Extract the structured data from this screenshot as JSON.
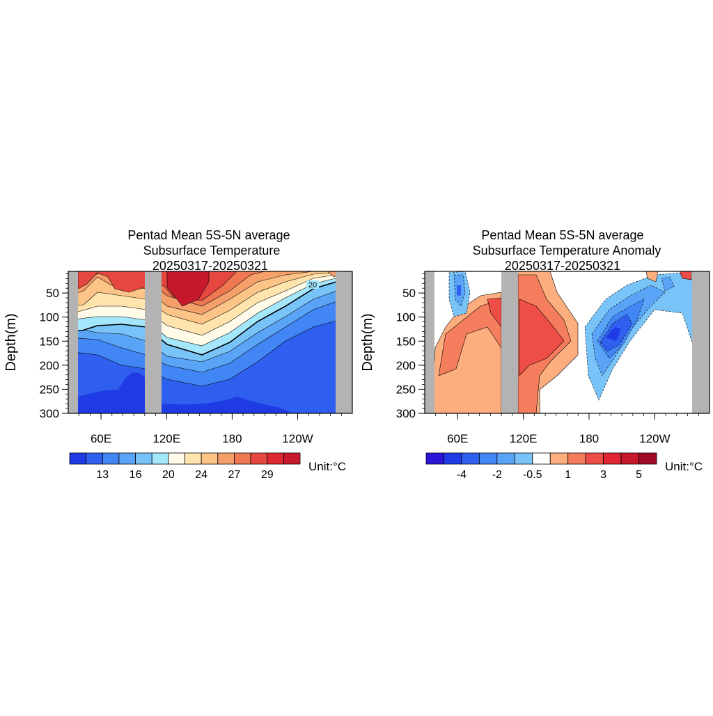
{
  "chart_data": [
    {
      "type": "heatmap",
      "title": [
        "Pentad Mean 5S-5N average",
        "Subsurface Temperature",
        "20250317-20250321"
      ],
      "ylabel": "Depth(m)",
      "xlabel": "",
      "x_ticks": [
        "60E",
        "120E",
        "180",
        "120W"
      ],
      "x_range": [
        30,
        290
      ],
      "y_ticks": [
        "50",
        "100",
        "150",
        "200",
        "250",
        "300"
      ],
      "y_range": [
        5,
        300
      ],
      "y_reversed": true,
      "contour_label": "20",
      "colorbar": {
        "labels": [
          "13",
          "16",
          "20",
          "24",
          "27",
          "29"
        ],
        "colors": [
          "#1f3be6",
          "#2f5fee",
          "#4286f5",
          "#5aa4f7",
          "#78c3f8",
          "#a4e6fb",
          "#fffbe8",
          "#ffe4ae",
          "#fcc487",
          "#f5a06b",
          "#ee7852",
          "#e64841",
          "#e02830",
          "#c8192c"
        ]
      },
      "unit": "Unit:°C",
      "mask_color": "#b3b3b3"
    },
    {
      "type": "heatmap",
      "title": [
        "Pentad Mean 5S-5N average",
        "Subsurface Temperature Anomaly",
        "20250317-20250321"
      ],
      "ylabel": "Depth(m)",
      "xlabel": "",
      "x_ticks": [
        "60E",
        "120E",
        "180",
        "120W"
      ],
      "x_range": [
        30,
        290
      ],
      "y_ticks": [
        "50",
        "100",
        "150",
        "200",
        "250",
        "300"
      ],
      "y_range": [
        5,
        300
      ],
      "y_reversed": true,
      "colorbar": {
        "labels": [
          "-4",
          "-2",
          "-0.5",
          "1",
          "3",
          "5"
        ],
        "colors": [
          "#2a14d8",
          "#1f3be6",
          "#2f5fee",
          "#4286f5",
          "#5aa4f7",
          "#78c3f8",
          "#ffffff",
          "#fcae7f",
          "#f57d5e",
          "#ee4e47",
          "#e02633",
          "#c8192c",
          "#9e0a27"
        ]
      },
      "unit": "Unit:°C",
      "mask_color": "#b3b3b3"
    }
  ]
}
